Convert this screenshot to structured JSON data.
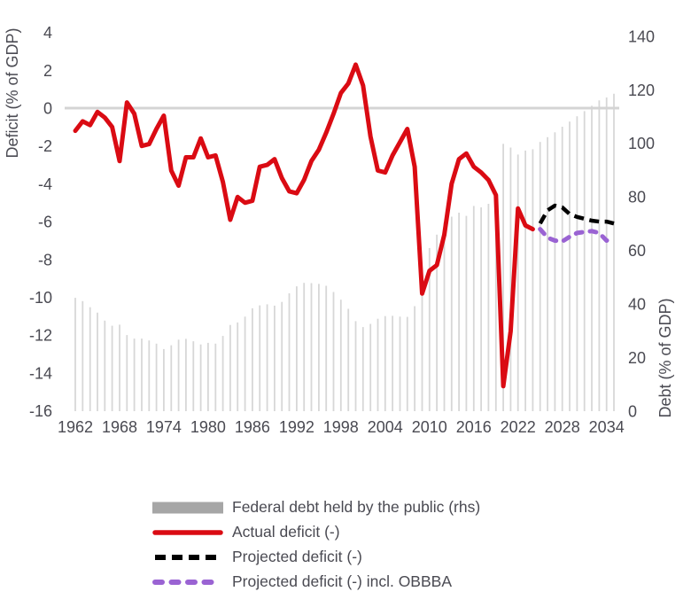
{
  "axes": {
    "left_title": "Deficit (% of GDP)",
    "right_title": "Debt (% of GDP)"
  },
  "legend": {
    "items": [
      {
        "id": "federal-debt",
        "label": "Federal debt held by the public (rhs)",
        "swatch": "bar",
        "color": "#a6a6a6"
      },
      {
        "id": "actual-deficit",
        "label": "Actual deficit (-)",
        "swatch": "line-solid",
        "color": "#da0b13"
      },
      {
        "id": "projected-deficit",
        "label": "Projected deficit (-)",
        "swatch": "line-dashed",
        "color": "#000000"
      },
      {
        "id": "projected-deficit-obbba",
        "label": "Projected deficit (-) incl. OBBBA",
        "swatch": "line-dashed-round",
        "color": "#9a63d3"
      }
    ]
  },
  "chart_data": {
    "type": "combo",
    "title": "",
    "x_axis": {
      "start": 1962,
      "end": 2035,
      "tick_labels": [
        1962,
        1968,
        1974,
        1980,
        1986,
        1992,
        1998,
        2004,
        2010,
        2016,
        2022,
        2028,
        2034
      ]
    },
    "left_axis": {
      "label": "Deficit (% of GDP)",
      "range": [
        -16,
        4
      ],
      "ticks": [
        4,
        2,
        0,
        -2,
        -4,
        -6,
        -8,
        -10,
        -12,
        -14,
        -16
      ]
    },
    "right_axis": {
      "label": "Debt (% of GDP)",
      "range": [
        0,
        140
      ],
      "ticks": [
        140,
        120,
        100,
        80,
        60,
        40,
        20,
        0
      ]
    },
    "grid": false,
    "legend_position": "bottom",
    "zero_line": {
      "axis": "left",
      "value": 0,
      "color": "#d4d4d4"
    },
    "series": [
      {
        "id": "debt-bars",
        "name": "Federal debt held by the public (rhs)",
        "type": "bar",
        "axis": "right",
        "color": "#d7d7d7",
        "start_year": 1962,
        "values": [
          42.3,
          41.1,
          38.8,
          36.8,
          33.8,
          31.9,
          32.3,
          28.4,
          27.1,
          27.1,
          26.4,
          25.2,
          23.2,
          24.6,
          26.7,
          27.0,
          26.1,
          24.9,
          25.5,
          25.2,
          28.1,
          32.2,
          33.1,
          35.3,
          38.4,
          39.5,
          39.9,
          39.4,
          40.8,
          44.0,
          46.6,
          47.9,
          47.8,
          47.5,
          46.8,
          44.5,
          41.6,
          38.2,
          33.6,
          31.4,
          32.6,
          34.5,
          35.5,
          35.6,
          35.3,
          35.2,
          39.2,
          52.3,
          60.9,
          65.9,
          70.4,
          72.6,
          74.1,
          72.9,
          76.6,
          76.1,
          77.4,
          79.2,
          99.8,
          98.4,
          95.8,
          97.3,
          97.8,
          100.5,
          102.3,
          104.1,
          106.2,
          108.1,
          110.1,
          112.0,
          114.0,
          116.0,
          117.1,
          118.5
        ]
      },
      {
        "id": "actual-deficit-line",
        "name": "Actual deficit (-)",
        "type": "line",
        "axis": "left",
        "color": "#da0b13",
        "stroke_width": 5,
        "dash": null,
        "linecap": "round",
        "start_year": 1962,
        "values": [
          -1.2,
          -0.7,
          -0.9,
          -0.2,
          -0.5,
          -1.0,
          -2.8,
          0.3,
          -0.3,
          -2.0,
          -1.9,
          -1.1,
          -0.4,
          -3.3,
          -4.1,
          -2.6,
          -2.6,
          -1.6,
          -2.6,
          -2.5,
          -3.9,
          -5.9,
          -4.7,
          -5.0,
          -4.9,
          -3.1,
          -3.0,
          -2.7,
          -3.7,
          -4.4,
          -4.5,
          -3.8,
          -2.8,
          -2.2,
          -1.3,
          -0.3,
          0.8,
          1.3,
          2.3,
          1.2,
          -1.5,
          -3.3,
          -3.4,
          -2.5,
          -1.8,
          -1.1,
          -3.1,
          -9.8,
          -8.6,
          -8.3,
          -6.7,
          -4.0,
          -2.7,
          -2.4,
          -3.1,
          -3.4,
          -3.8,
          -4.6,
          -14.7,
          -11.8,
          -5.3,
          -6.2,
          -6.4
        ]
      },
      {
        "id": "projected-deficit-line",
        "name": "Projected deficit (-)",
        "type": "line",
        "axis": "left",
        "color": "#000000",
        "stroke_width": 4.5,
        "dash": "11 6.5",
        "linecap": "butt",
        "start_year": 2025,
        "values": [
          -6.1,
          -5.4,
          -5.15,
          -5.25,
          -5.6,
          -5.75,
          -5.85,
          -5.95,
          -6.0,
          -6.0,
          -6.1
        ]
      },
      {
        "id": "projected-deficit-obbba-line",
        "name": "Projected deficit (-) incl. OBBBA",
        "type": "line",
        "axis": "left",
        "color": "#9a63d3",
        "stroke_width": 5,
        "dash": "7 9",
        "linecap": "round",
        "start_year": 2025,
        "values": [
          -6.4,
          -6.85,
          -7.0,
          -7.05,
          -6.8,
          -6.6,
          -6.55,
          -6.5,
          -6.6,
          -7.0,
          -6.85
        ]
      }
    ]
  }
}
